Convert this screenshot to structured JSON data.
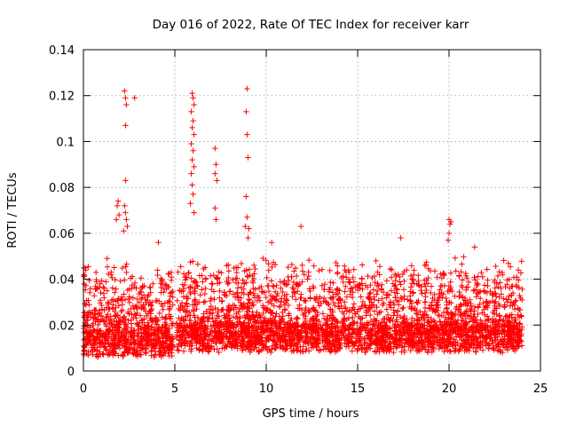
{
  "chart_data": {
    "type": "scatter",
    "title": "Day 016 of 2022, Rate Of TEC Index for receiver karr",
    "xlabel": "GPS time / hours",
    "ylabel": "ROTI / TECUs",
    "xlim": [
      0,
      25
    ],
    "ylim": [
      0,
      0.14
    ],
    "x_ticks": [
      0,
      5,
      10,
      15,
      20,
      25
    ],
    "x_tick_labels": [
      "0",
      "5",
      "10",
      "15",
      "20",
      "25"
    ],
    "y_ticks": [
      0,
      0.02,
      0.04,
      0.06,
      0.08,
      0.1,
      0.12,
      0.14
    ],
    "y_tick_labels": [
      "0",
      "0.02",
      "0.04",
      "0.06",
      "0.08",
      "0.1",
      "0.12",
      "0.14"
    ],
    "grid": true,
    "marker": "plus",
    "color": "#ff0000",
    "segments": [
      {
        "x_start": 0.0,
        "x_end": 4.9,
        "baseline": 0.012,
        "spread": 0.03
      },
      {
        "x_start": 5.1,
        "x_end": 24.0,
        "baseline": 0.014,
        "spread": 0.03
      }
    ],
    "outliers": [
      [
        2.25,
        0.122
      ],
      [
        2.3,
        0.119
      ],
      [
        2.35,
        0.116
      ],
      [
        2.8,
        0.119
      ],
      [
        2.3,
        0.107
      ],
      [
        2.3,
        0.083
      ],
      [
        2.25,
        0.072
      ],
      [
        2.3,
        0.069
      ],
      [
        2.35,
        0.066
      ],
      [
        2.4,
        0.063
      ],
      [
        2.2,
        0.061
      ],
      [
        1.9,
        0.074
      ],
      [
        1.85,
        0.072
      ],
      [
        1.95,
        0.068
      ],
      [
        1.8,
        0.066
      ],
      [
        5.95,
        0.121
      ],
      [
        6.0,
        0.119
      ],
      [
        6.05,
        0.116
      ],
      [
        5.9,
        0.113
      ],
      [
        6.0,
        0.109
      ],
      [
        5.95,
        0.106
      ],
      [
        6.05,
        0.103
      ],
      [
        5.9,
        0.099
      ],
      [
        6.0,
        0.096
      ],
      [
        5.95,
        0.092
      ],
      [
        6.05,
        0.089
      ],
      [
        5.9,
        0.086
      ],
      [
        5.95,
        0.081
      ],
      [
        6.0,
        0.077
      ],
      [
        5.85,
        0.073
      ],
      [
        6.05,
        0.069
      ],
      [
        7.2,
        0.097
      ],
      [
        7.25,
        0.09
      ],
      [
        7.2,
        0.086
      ],
      [
        7.3,
        0.083
      ],
      [
        7.2,
        0.071
      ],
      [
        7.25,
        0.066
      ],
      [
        8.95,
        0.123
      ],
      [
        8.9,
        0.113
      ],
      [
        8.95,
        0.103
      ],
      [
        9.0,
        0.093
      ],
      [
        8.9,
        0.076
      ],
      [
        8.95,
        0.067
      ],
      [
        8.85,
        0.063
      ],
      [
        9.05,
        0.062
      ],
      [
        9.0,
        0.058
      ],
      [
        20.0,
        0.066
      ],
      [
        20.05,
        0.064
      ],
      [
        20.1,
        0.065
      ],
      [
        20.0,
        0.06
      ],
      [
        19.95,
        0.057
      ],
      [
        21.4,
        0.054
      ],
      [
        17.35,
        0.058
      ],
      [
        16.0,
        0.048
      ],
      [
        11.9,
        0.063
      ],
      [
        4.1,
        0.056
      ],
      [
        4.8,
        0.043
      ],
      [
        10.3,
        0.056
      ],
      [
        3.8,
        0.038
      ],
      [
        1.3,
        0.049
      ],
      [
        0.1,
        0.045
      ]
    ]
  }
}
